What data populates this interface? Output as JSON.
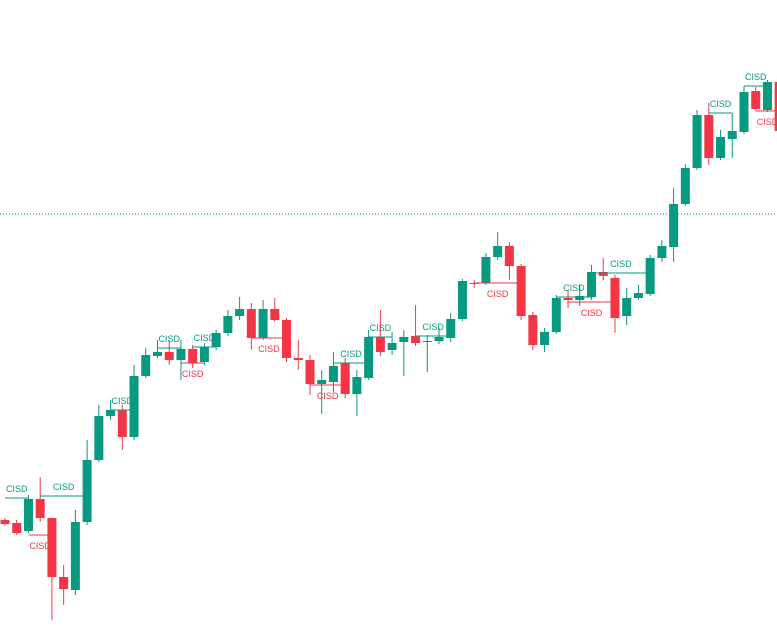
{
  "chart_data": {
    "type": "candlestick",
    "up_color": "#089981",
    "down_color": "#f23645",
    "ylim": [
      0,
      635
    ],
    "reference_line": 421,
    "series": [
      {
        "open": [
          115,
          112,
          104,
          136,
          117,
          58,
          45,
          113,
          175,
          219,
          225,
          198,
          259,
          279,
          283,
          275,
          286,
          273,
          288,
          302,
          319,
          326,
          297,
          326,
          315,
          277,
          275,
          251,
          253,
          272,
          241,
          257,
          298,
          285,
          293,
          299,
          293,
          294,
          297,
          316,
          352,
          352,
          378,
          389,
          369,
          320,
          290,
          303,
          337,
          335,
          338,
          363,
          357,
          319,
          337,
          341,
          377,
          388,
          431,
          467,
          520,
          477,
          496,
          503,
          544,
          525,
          553
        ],
        "high": [
          117,
          115,
          140,
          158,
          117,
          70,
          125,
          195,
          230,
          235,
          230,
          270,
          287,
          295,
          295,
          295,
          290,
          292,
          305,
          325,
          338,
          332,
          335,
          337,
          317,
          295,
          280,
          265,
          283,
          277,
          265,
          305,
          325,
          303,
          305,
          330,
          300,
          307,
          322,
          356,
          355,
          382,
          403,
          393,
          371,
          323,
          307,
          340,
          345,
          350,
          370,
          377,
          360,
          347,
          350,
          380,
          395,
          447,
          471,
          525,
          532,
          505,
          522,
          549,
          548,
          555,
          555
        ],
        "low": [
          109,
          100,
          102,
          113,
          15,
          30,
          40,
          110,
          173,
          215,
          185,
          195,
          257,
          277,
          270,
          255,
          267,
          270,
          285,
          299,
          315,
          285,
          295,
          313,
          273,
          265,
          240,
          221,
          243,
          237,
          219,
          255,
          279,
          280,
          259,
          289,
          263,
          291,
          293,
          314,
          347,
          350,
          375,
          355,
          315,
          285,
          283,
          301,
          327,
          329,
          335,
          355,
          302,
          310,
          335,
          339,
          373,
          373,
          429,
          465,
          470,
          475,
          477,
          501,
          524,
          523,
          503
        ],
        "close": [
          111,
          102,
          136,
          117,
          58,
          46,
          113,
          175,
          219,
          225,
          198,
          259,
          280,
          283,
          275,
          286,
          272,
          288,
          302,
          319,
          326,
          297,
          326,
          315,
          277,
          275,
          251,
          255,
          269,
          241,
          258,
          298,
          283,
          292,
          298,
          292,
          294,
          298,
          316,
          354,
          351,
          378,
          389,
          369,
          319,
          290,
          303,
          337,
          335,
          339,
          363,
          359,
          317,
          337,
          342,
          377,
          389,
          431,
          467,
          520,
          477,
          498,
          504,
          543,
          526,
          553,
          504
        ]
      }
    ],
    "annotations": [
      {
        "text": "CISD",
        "from": 0,
        "to": 2,
        "level": 137,
        "color": "#089981"
      },
      {
        "text": "CISD",
        "from": 2,
        "to": 4,
        "level": 100,
        "color": "#f23645"
      },
      {
        "text": "CISD",
        "from": 3,
        "to": 7,
        "level": 139,
        "color": "#089981"
      },
      {
        "text": "CISD",
        "from": 9,
        "to": 11,
        "level": 225,
        "color": "#089981"
      },
      {
        "text": "CISD",
        "from": 13,
        "to": 15,
        "level": 287,
        "color": "#089981"
      },
      {
        "text": "CISD",
        "from": 15,
        "to": 17,
        "level": 272,
        "color": "#f23645"
      },
      {
        "text": "CISD",
        "from": 16,
        "to": 18,
        "level": 288,
        "color": "#089981"
      },
      {
        "text": "CISD",
        "from": 21,
        "to": 24,
        "level": 297,
        "color": "#f23645"
      },
      {
        "text": "CISD",
        "from": 26,
        "to": 29,
        "level": 250,
        "color": "#f23645"
      },
      {
        "text": "CISD",
        "from": 28,
        "to": 31,
        "level": 272,
        "color": "#089981"
      },
      {
        "text": "CISD",
        "from": 31,
        "to": 33,
        "level": 298,
        "color": "#089981"
      },
      {
        "text": "CISD",
        "from": 35,
        "to": 38,
        "level": 299,
        "color": "#089981"
      },
      {
        "text": "CISD",
        "from": 40,
        "to": 44,
        "level": 352,
        "color": "#f23645"
      },
      {
        "text": "CISD",
        "from": 47,
        "to": 50,
        "level": 338,
        "color": "#089981"
      },
      {
        "text": "CISD",
        "from": 48,
        "to": 52,
        "level": 333,
        "color": "#f23645"
      },
      {
        "text": "CISD",
        "from": 50,
        "to": 55,
        "level": 362,
        "color": "#089981"
      },
      {
        "text": "CISD",
        "from": 60,
        "to": 62,
        "level": 522,
        "color": "#089981"
      },
      {
        "text": "CISD",
        "from": 63,
        "to": 65,
        "level": 549,
        "color": "#089981"
      },
      {
        "text": "CISD",
        "from": 64,
        "to": 66,
        "level": 524,
        "color": "#f23645"
      }
    ]
  }
}
